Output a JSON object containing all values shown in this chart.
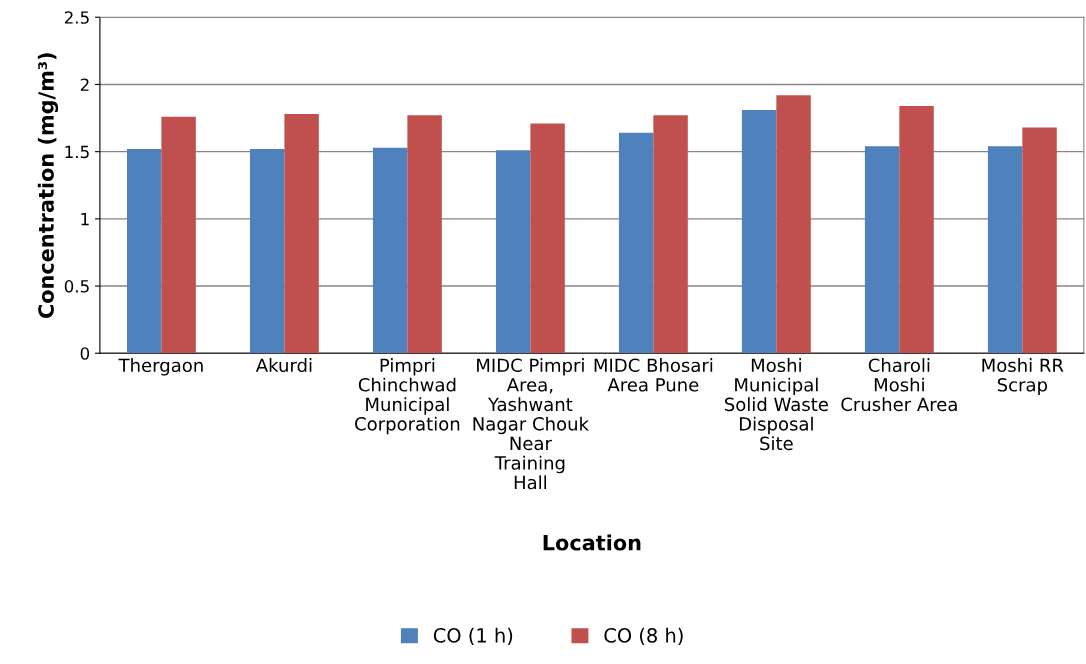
{
  "chart_data": {
    "type": "bar",
    "xlabel": "Location",
    "ylabel": "Concentration (mg/m³)",
    "categories": [
      "Thergaon",
      "Akurdi",
      "Pimpri Chinchwad Municipal Corporation",
      "MIDC Pimpri Area, Yashwant Nagar Chouk Near Training Hall",
      "MIDC Bhosari Area Pune",
      "Moshi Municipal Solid Waste Disposal Site",
      "Charoli Moshi Crusher Area",
      "Moshi RR Scrap"
    ],
    "series": [
      {
        "name": "CO (1 h)",
        "color": "#4f81bd",
        "values": [
          1.52,
          1.52,
          1.53,
          1.51,
          1.64,
          1.81,
          1.54,
          1.54
        ]
      },
      {
        "name": "CO (8 h)",
        "color": "#c0504d",
        "values": [
          1.76,
          1.78,
          1.77,
          1.71,
          1.77,
          1.92,
          1.84,
          1.68
        ]
      }
    ],
    "ylim": [
      0,
      2.5
    ],
    "yticks": [
      0,
      0.5,
      1,
      1.5,
      2,
      2.5
    ],
    "grid": "y",
    "legend": "bottom"
  }
}
